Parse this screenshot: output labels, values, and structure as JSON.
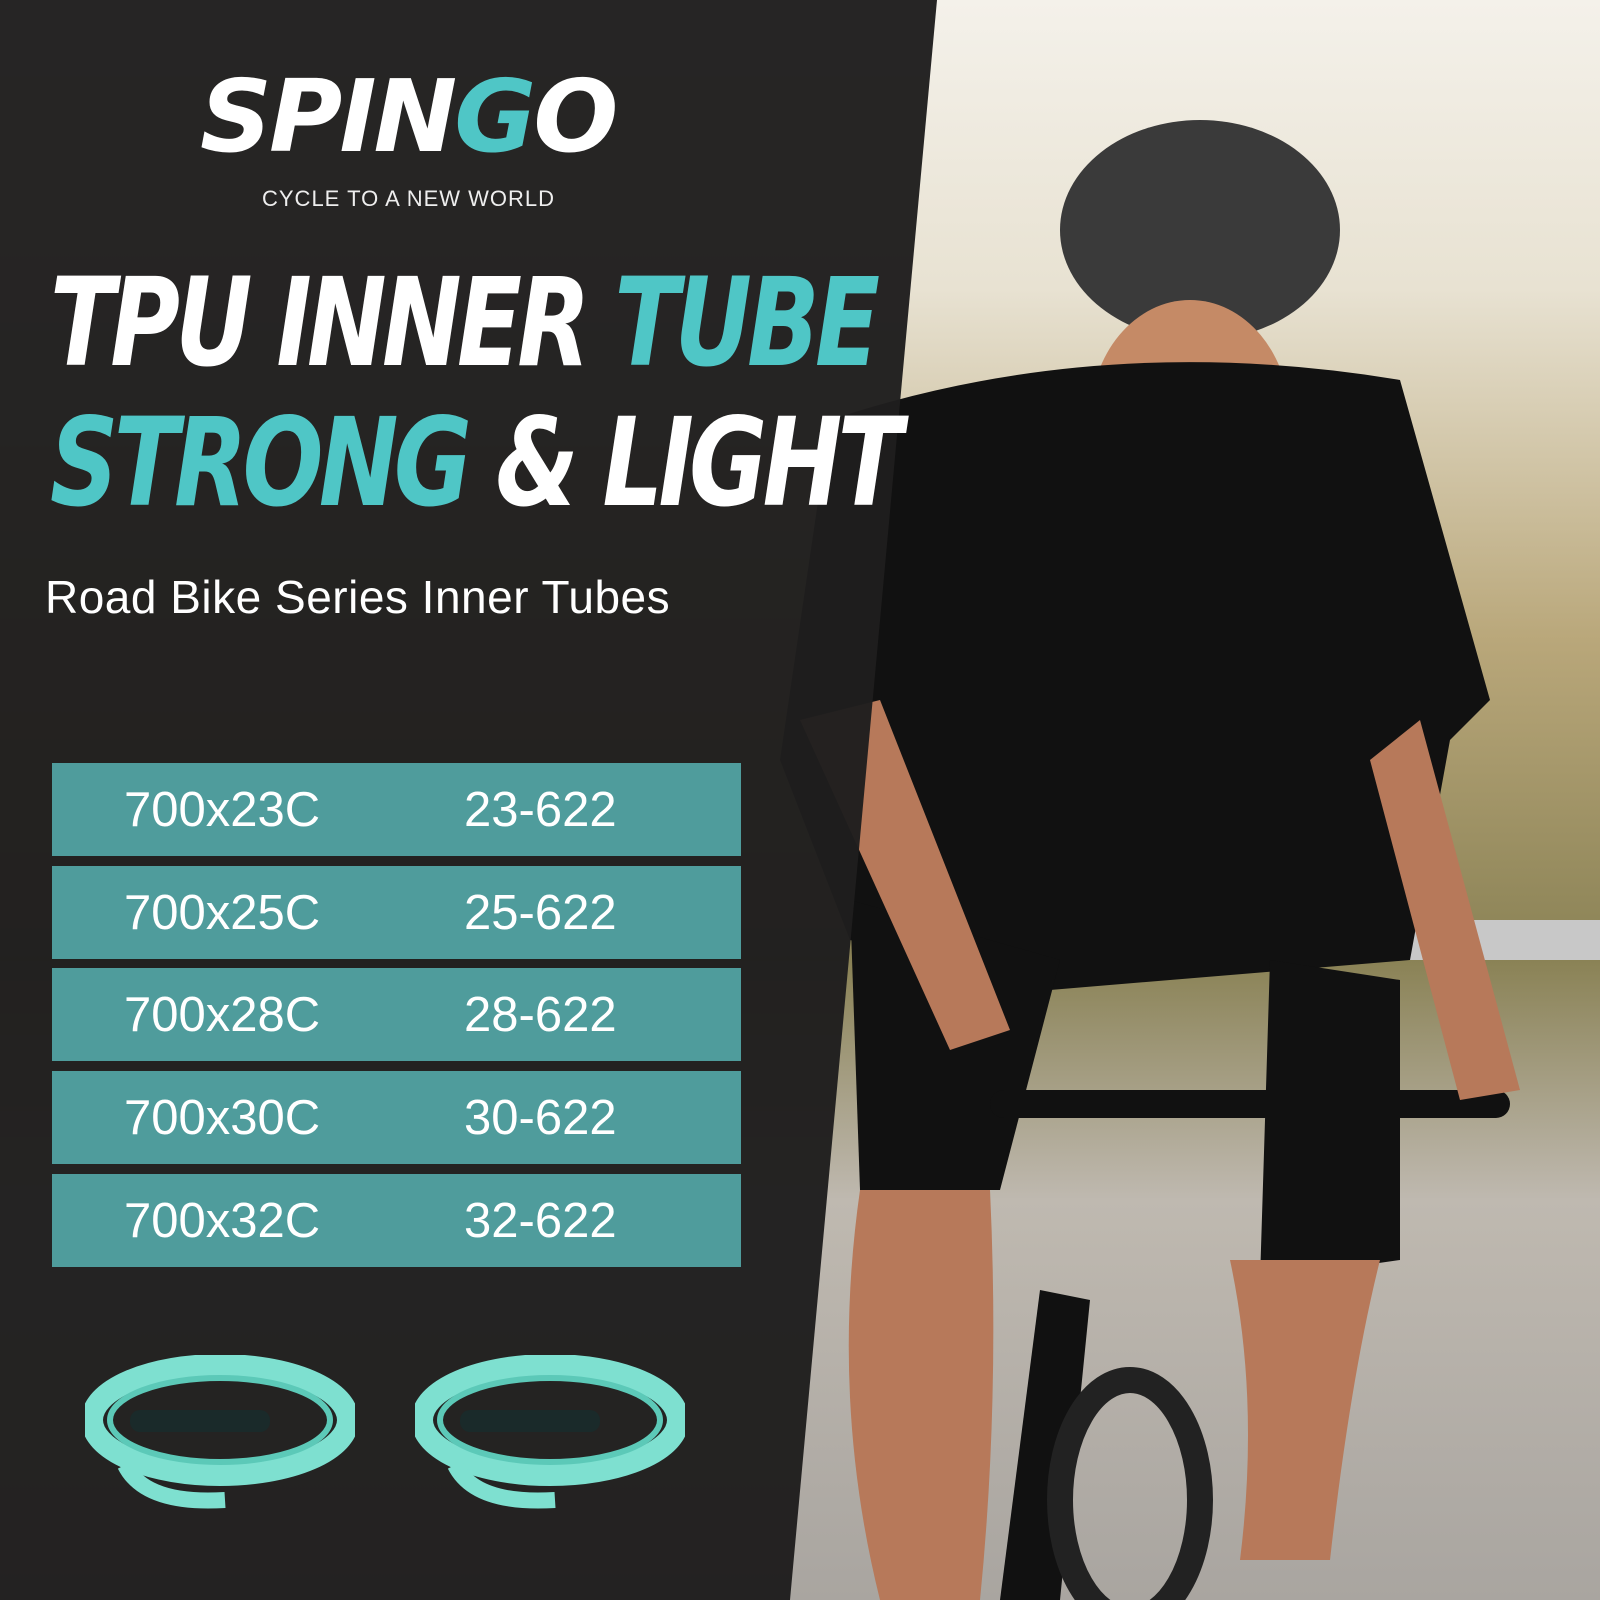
{
  "brand": {
    "logo_text": "SPINGO",
    "tagline": "CYCLE TO A NEW WORLD",
    "accent_color": "#4fc6c6"
  },
  "headline": {
    "line1_white": "TPU INNER ",
    "line1_teal": "TUBE",
    "line2_teal": "STRONG",
    "line2_white": " & LIGHT"
  },
  "subtitle": "Road Bike Series Inner Tubes",
  "size_table": {
    "row_color": "#4f9c9c",
    "rows": [
      {
        "size": "700x23C",
        "etrto": "23-622"
      },
      {
        "size": "700x25C",
        "etrto": "25-622"
      },
      {
        "size": "700x28C",
        "etrto": "28-622"
      },
      {
        "size": "700x30C",
        "etrto": "30-622"
      },
      {
        "size": "700x32C",
        "etrto": "32-622"
      }
    ]
  },
  "product_images": [
    "folded-tpu-inner-tube",
    "folded-tpu-inner-tube"
  ],
  "photo": "road-cyclist-riding-on-sunny-mountain-road"
}
